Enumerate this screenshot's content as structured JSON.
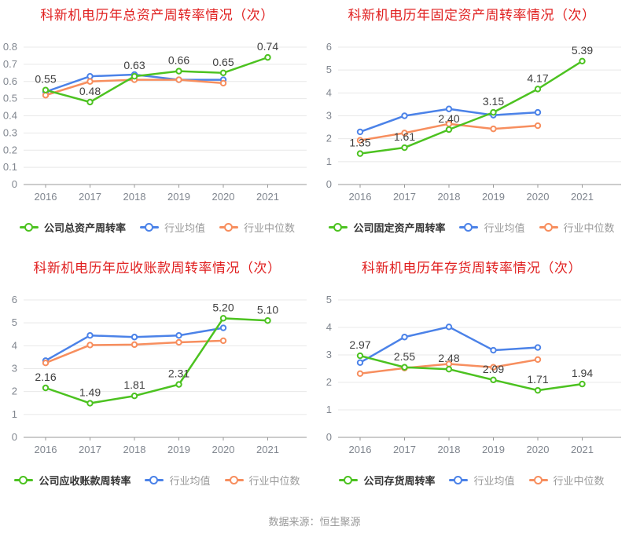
{
  "page": {
    "background": "#ffffff"
  },
  "footer": {
    "source_text": "数据来源：恒生聚源"
  },
  "colors": {
    "company": "#4cc220",
    "mean": "#4b82e8",
    "median": "#f78e5e",
    "title": "#e02020",
    "grid": "#e8e8e8",
    "axis": "#999999",
    "tick_label": "#80868f",
    "data_label": "#404040"
  },
  "chart_data": [
    {
      "type": "line",
      "title": "科新机电历年总资产周转率情况（次）",
      "x": [
        "2016",
        "2017",
        "2018",
        "2019",
        "2020",
        "2021"
      ],
      "ylim": [
        0,
        0.8
      ],
      "ytick_step": 0.1,
      "label_decimals": 2,
      "grid": true,
      "legend_position": "bottom",
      "series": [
        {
          "name": "公司总资产周转率",
          "color_key": "company",
          "values": [
            0.55,
            0.48,
            0.63,
            0.66,
            0.65,
            0.74
          ]
        },
        {
          "name": "行业均值",
          "color_key": "mean",
          "values": [
            0.54,
            0.63,
            0.64,
            0.61,
            0.61,
            null
          ]
        },
        {
          "name": "行业中位数",
          "color_key": "median",
          "values": [
            0.52,
            0.6,
            0.61,
            0.61,
            0.59,
            null
          ]
        }
      ]
    },
    {
      "type": "line",
      "title": "科新机电历年固定资产周转率情况（次）",
      "x": [
        "2016",
        "2017",
        "2018",
        "2019",
        "2020",
        "2021"
      ],
      "ylim": [
        0,
        6
      ],
      "ytick_step": 1,
      "label_decimals": 2,
      "grid": true,
      "legend_position": "bottom",
      "series": [
        {
          "name": "公司固定资产周转率",
          "color_key": "company",
          "values": [
            1.35,
            1.61,
            2.4,
            3.15,
            4.17,
            5.39
          ]
        },
        {
          "name": "行业均值",
          "color_key": "mean",
          "values": [
            2.3,
            3.0,
            3.3,
            3.03,
            3.15,
            null
          ]
        },
        {
          "name": "行业中位数",
          "color_key": "median",
          "values": [
            1.93,
            2.25,
            2.65,
            2.43,
            2.57,
            null
          ]
        }
      ]
    },
    {
      "type": "line",
      "title": "科新机电历年应收账款周转率情况（次）",
      "x": [
        "2016",
        "2017",
        "2018",
        "2019",
        "2020",
        "2021"
      ],
      "ylim": [
        0,
        6
      ],
      "ytick_step": 1,
      "label_decimals": 2,
      "grid": true,
      "legend_position": "bottom",
      "series": [
        {
          "name": "公司应收账款周转率",
          "color_key": "company",
          "values": [
            2.16,
            1.49,
            1.81,
            2.31,
            5.2,
            5.1
          ]
        },
        {
          "name": "行业均值",
          "color_key": "mean",
          "values": [
            3.35,
            4.45,
            4.38,
            4.45,
            4.78,
            null
          ]
        },
        {
          "name": "行业中位数",
          "color_key": "median",
          "values": [
            3.25,
            4.03,
            4.05,
            4.15,
            4.22,
            null
          ]
        }
      ]
    },
    {
      "type": "line",
      "title": "科新机电历年存货周转率情况（次）",
      "x": [
        "2016",
        "2017",
        "2018",
        "2019",
        "2020",
        "2021"
      ],
      "ylim": [
        0,
        5
      ],
      "ytick_step": 1,
      "label_decimals": 2,
      "grid": true,
      "legend_position": "bottom",
      "series": [
        {
          "name": "公司存货周转率",
          "color_key": "company",
          "values": [
            2.97,
            2.55,
            2.48,
            2.09,
            1.71,
            1.94
          ]
        },
        {
          "name": "行业均值",
          "color_key": "mean",
          "values": [
            2.72,
            3.65,
            4.02,
            3.17,
            3.27,
            null
          ]
        },
        {
          "name": "行业中位数",
          "color_key": "median",
          "values": [
            2.32,
            2.52,
            2.67,
            2.55,
            2.83,
            null
          ]
        }
      ]
    }
  ]
}
